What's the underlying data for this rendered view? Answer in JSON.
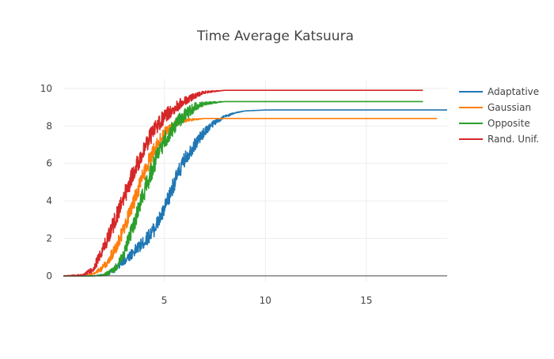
{
  "chart_data": {
    "type": "line",
    "title": "Time Average Katsuura",
    "xlabel": "",
    "ylabel": "",
    "xlim": [
      0,
      19
    ],
    "ylim": [
      -0.3,
      10.5
    ],
    "x_ticks": [
      5,
      10,
      15
    ],
    "y_ticks": [
      0,
      2,
      4,
      6,
      8,
      10
    ],
    "grid": true,
    "legend_placement": "top-right",
    "series": [
      {
        "name": "Adaptative",
        "color": "#1f77b4",
        "x": [
          0,
          1.5,
          2.0,
          2.5,
          3.0,
          3.5,
          4.0,
          4.5,
          5.0,
          5.5,
          6.0,
          6.5,
          7.0,
          7.5,
          8.0,
          8.5,
          9.0,
          10.0,
          12.0,
          15.0,
          19.0
        ],
        "y": [
          0,
          0,
          0.05,
          0.3,
          0.8,
          1.3,
          1.8,
          2.5,
          3.5,
          5.0,
          6.2,
          7.0,
          7.7,
          8.2,
          8.5,
          8.7,
          8.8,
          8.85,
          8.85,
          8.85,
          8.85
        ],
        "amplitude": [
          0,
          0,
          0.05,
          0.15,
          0.25,
          0.3,
          0.35,
          0.4,
          0.45,
          0.45,
          0.4,
          0.35,
          0.25,
          0.15,
          0.08,
          0.03,
          0,
          0,
          0,
          0,
          0
        ]
      },
      {
        "name": "Gaussian",
        "color": "#ff7f0e",
        "x": [
          0,
          1.0,
          1.5,
          2.0,
          2.5,
          3.0,
          3.5,
          4.0,
          4.5,
          5.0,
          5.5,
          6.0,
          6.5,
          7.0,
          8.0,
          10.0,
          13.0,
          18.5
        ],
        "y": [
          0,
          0,
          0.1,
          0.5,
          1.3,
          2.5,
          4.0,
          5.5,
          6.8,
          7.6,
          8.1,
          8.3,
          8.35,
          8.4,
          8.4,
          8.4,
          8.4,
          8.4
        ],
        "amplitude": [
          0,
          0,
          0.05,
          0.2,
          0.3,
          0.4,
          0.45,
          0.45,
          0.4,
          0.3,
          0.2,
          0.1,
          0.05,
          0,
          0,
          0,
          0,
          0
        ]
      },
      {
        "name": "Opposite",
        "color": "#2ca02c",
        "x": [
          0,
          1.5,
          2.0,
          2.5,
          3.0,
          3.5,
          4.0,
          4.5,
          5.0,
          5.5,
          6.0,
          6.5,
          7.0,
          7.5,
          8.0,
          9.0,
          12.0,
          17.8
        ],
        "y": [
          0,
          0,
          0.05,
          0.3,
          1.2,
          2.8,
          4.5,
          6.0,
          7.2,
          8.0,
          8.6,
          9.0,
          9.2,
          9.25,
          9.3,
          9.3,
          9.3,
          9.3
        ],
        "amplitude": [
          0,
          0,
          0.05,
          0.2,
          0.35,
          0.45,
          0.5,
          0.5,
          0.45,
          0.4,
          0.35,
          0.25,
          0.1,
          0.05,
          0,
          0,
          0,
          0
        ]
      },
      {
        "name": "Rand. Unif.",
        "color": "#d62728",
        "x": [
          0,
          1.0,
          1.5,
          2.0,
          2.5,
          3.0,
          3.5,
          4.0,
          4.5,
          5.0,
          5.5,
          6.0,
          6.5,
          7.0,
          7.5,
          8.0,
          9.0,
          12.0,
          17.8
        ],
        "y": [
          0,
          0.05,
          0.4,
          1.5,
          2.8,
          4.2,
          5.6,
          6.8,
          7.8,
          8.5,
          9.0,
          9.3,
          9.6,
          9.8,
          9.85,
          9.9,
          9.9,
          9.9,
          9.9
        ],
        "amplitude": [
          0,
          0.05,
          0.2,
          0.35,
          0.45,
          0.5,
          0.5,
          0.5,
          0.45,
          0.4,
          0.35,
          0.25,
          0.15,
          0.08,
          0.03,
          0,
          0,
          0,
          0
        ]
      }
    ]
  }
}
